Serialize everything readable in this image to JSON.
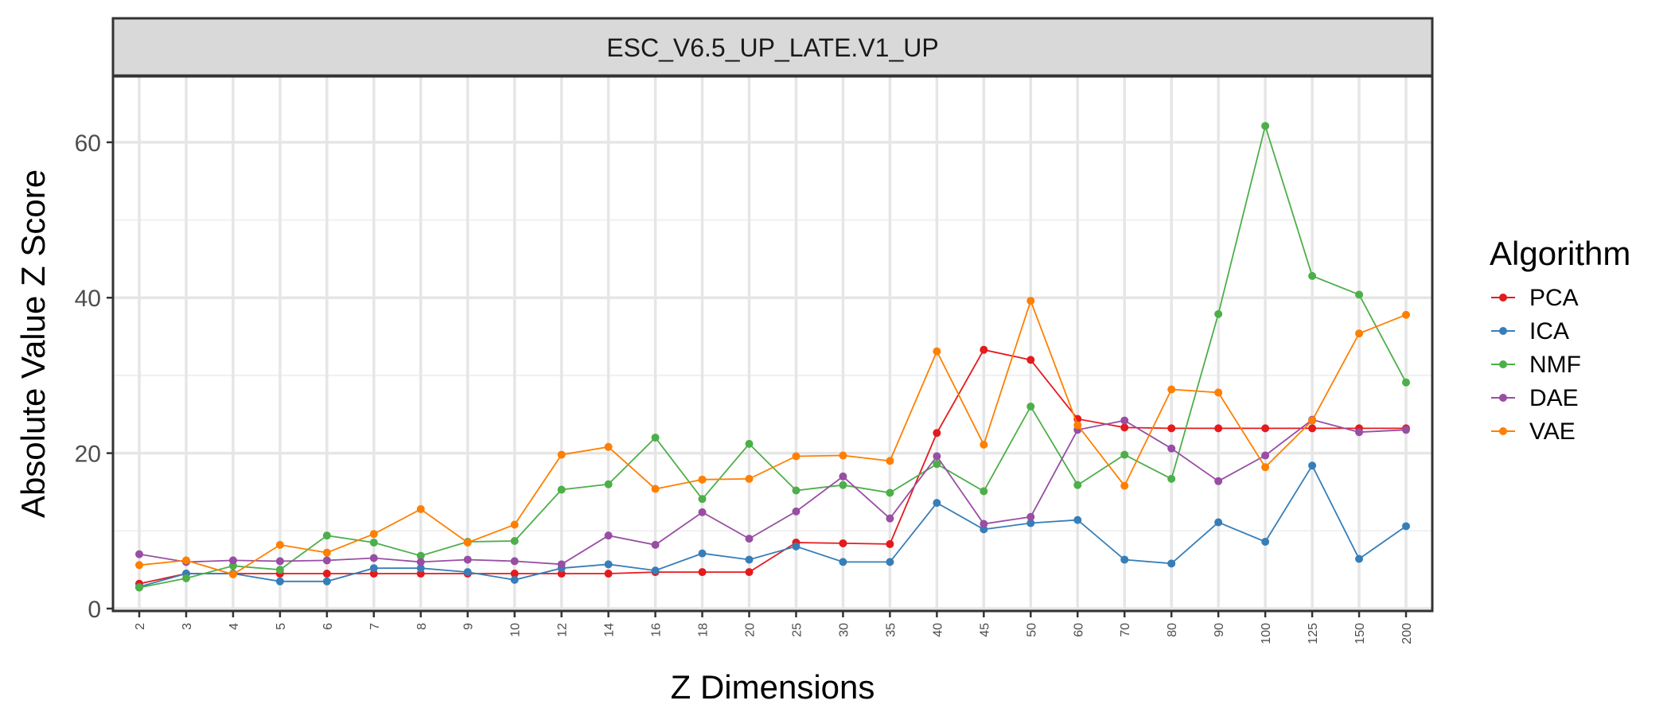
{
  "chart_data": {
    "type": "line",
    "title": "ESC_V6.5_UP_LATE.V1_UP",
    "xlabel": "Z Dimensions",
    "ylabel": "Absolute Value Z Score",
    "categories": [
      "2",
      "3",
      "4",
      "5",
      "6",
      "7",
      "8",
      "9",
      "10",
      "12",
      "14",
      "16",
      "18",
      "20",
      "25",
      "30",
      "35",
      "40",
      "45",
      "50",
      "60",
      "70",
      "80",
      "90",
      "100",
      "125",
      "150",
      "200"
    ],
    "ylim": [
      0,
      65
    ],
    "yticks": [
      0,
      20,
      40,
      60
    ],
    "grid": true,
    "legend": {
      "title": "Algorithm",
      "placement": "right"
    },
    "series": [
      {
        "name": "PCA",
        "color": "#e41a1c",
        "values": [
          3.2,
          4.5,
          4.5,
          4.5,
          4.5,
          4.5,
          4.5,
          4.5,
          4.5,
          4.5,
          4.5,
          4.7,
          4.7,
          4.7,
          8.5,
          8.4,
          8.3,
          22.6,
          33.3,
          32.0,
          24.4,
          23.3,
          23.2,
          23.2,
          23.2,
          23.2,
          23.2,
          23.2
        ]
      },
      {
        "name": "ICA",
        "color": "#377eb8",
        "values": [
          2.8,
          4.5,
          4.5,
          3.5,
          3.5,
          5.2,
          5.2,
          4.7,
          3.7,
          5.2,
          5.7,
          4.9,
          7.1,
          6.3,
          8.0,
          6.0,
          6.0,
          13.6,
          10.2,
          11.0,
          11.4,
          6.3,
          5.8,
          11.1,
          8.6,
          18.4,
          6.4,
          10.6
        ]
      },
      {
        "name": "NMF",
        "color": "#4daf4a",
        "values": [
          2.7,
          3.9,
          5.5,
          5.0,
          9.4,
          8.5,
          6.8,
          8.6,
          8.7,
          15.3,
          16.0,
          22.0,
          14.1,
          21.2,
          15.2,
          15.9,
          14.9,
          18.6,
          15.1,
          26.0,
          15.9,
          19.8,
          16.7,
          37.9,
          62.1,
          42.8,
          40.4,
          29.1
        ]
      },
      {
        "name": "DAE",
        "color": "#984ea3",
        "values": [
          7.0,
          6.0,
          6.2,
          6.1,
          6.2,
          6.5,
          6.0,
          6.3,
          6.1,
          5.7,
          9.4,
          8.2,
          12.4,
          9.0,
          12.5,
          17.0,
          11.6,
          19.6,
          10.9,
          11.8,
          23.0,
          24.2,
          20.6,
          16.4,
          19.7,
          24.3,
          22.7,
          23.0
        ]
      },
      {
        "name": "VAE",
        "color": "#ff7f00",
        "values": [
          5.6,
          6.2,
          4.4,
          8.2,
          7.2,
          9.6,
          12.8,
          8.5,
          10.8,
          19.8,
          20.8,
          15.4,
          16.6,
          16.7,
          19.6,
          19.7,
          19.0,
          33.1,
          21.1,
          39.6,
          23.6,
          15.8,
          28.2,
          27.8,
          18.2,
          24.2,
          35.4,
          37.8
        ]
      }
    ]
  }
}
